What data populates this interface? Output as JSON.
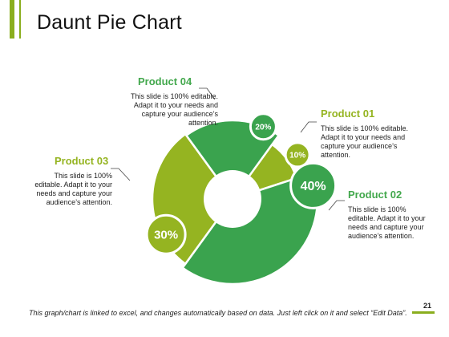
{
  "slide": {
    "title": "Daunt Pie Chart",
    "footer": "This graph/chart is linked to excel, and changes automatically based on data. Just left click on it and select “Edit Data”.",
    "page_number": "21"
  },
  "colors": {
    "accent": "#8aae1e",
    "green_dark": "#3aa34e",
    "green_mid": "#43a84d",
    "olive": "#95b421"
  },
  "chart_data": {
    "type": "pie",
    "variant": "donut",
    "slices": [
      {
        "name": "Product 01",
        "value": 10,
        "label": "10%",
        "color": "#95b421"
      },
      {
        "name": "Product 02",
        "value": 40,
        "label": "40%",
        "color": "#3aa34e"
      },
      {
        "name": "Product 03",
        "value": 30,
        "label": "30%",
        "color": "#95b421"
      },
      {
        "name": "Product 04",
        "value": 20,
        "label": "20%",
        "color": "#3aa34e"
      }
    ]
  },
  "annotations": [
    {
      "id": "product-01",
      "title": "Product 01",
      "text": "This slide is 100% editable. Adapt it to your needs and capture your audience’s attention."
    },
    {
      "id": "product-02",
      "title": "Product 02",
      "text": "This slide is 100% editable. Adapt it to your needs and capture your audience’s attention."
    },
    {
      "id": "product-03",
      "title": "Product 03",
      "text": "This slide is 100% editable. Adapt it to your needs and capture your audience’s attention."
    },
    {
      "id": "product-04",
      "title": "Product 04",
      "text": "This slide is 100% editable. Adapt it to your needs and capture your audience’s attention."
    }
  ]
}
